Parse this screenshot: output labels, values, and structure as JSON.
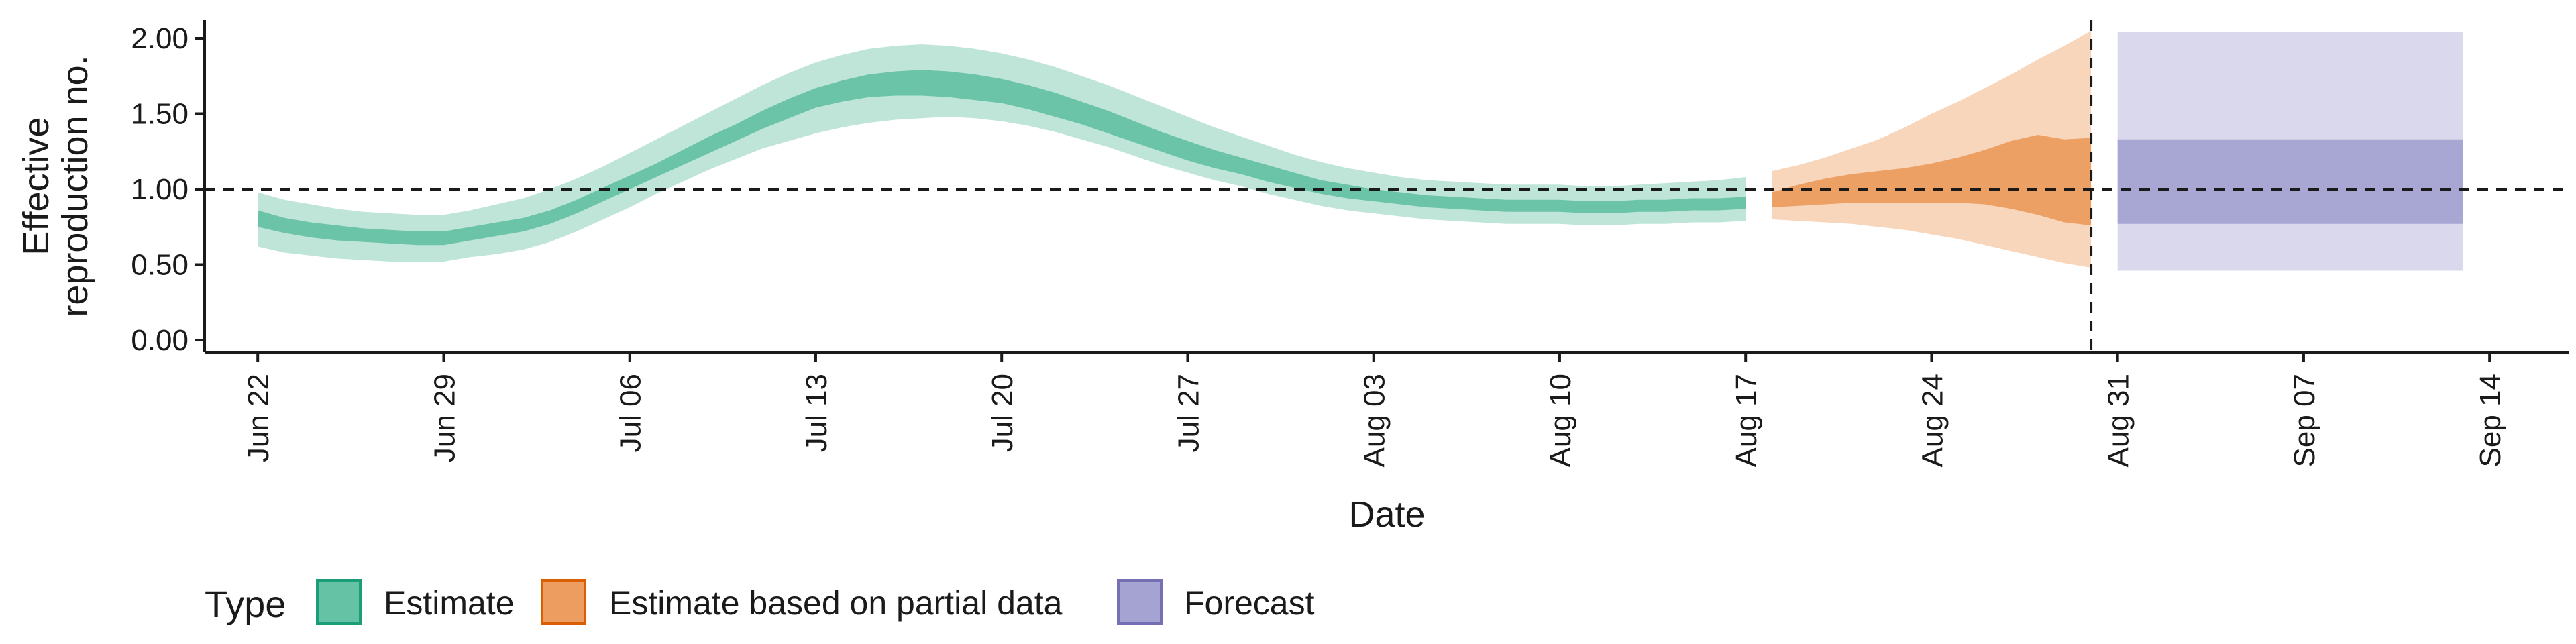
{
  "chart_data": {
    "type": "area",
    "title": "",
    "xlabel": "Date",
    "ylabel_lines": [
      "Effective",
      "reproduction no."
    ],
    "x_ticks": [
      "Jun 22",
      "Jun 29",
      "Jul 06",
      "Jul 13",
      "Jul 20",
      "Jul 27",
      "Aug 03",
      "Aug 10",
      "Aug 17",
      "Aug 24",
      "Aug 31",
      "Sep 07",
      "Sep 14"
    ],
    "y_ticks": [
      "0.00",
      "0.50",
      "1.00",
      "1.50",
      "2.00"
    ],
    "xlim": [
      "2020-06-20",
      "2020-09-17"
    ],
    "ylim": [
      -0.08,
      2.12
    ],
    "reference_hline": 1.0,
    "reference_vline": "2020-08-30",
    "grid": false,
    "legend": {
      "title": "Type",
      "placement": "bottom-left",
      "items": [
        {
          "label": "Estimate",
          "color": "#66c2a5",
          "border": "#1b9e77"
        },
        {
          "label": "Estimate based on partial data",
          "color": "#ec9d5f",
          "border": "#d95f02"
        },
        {
          "label": "Forecast",
          "color": "#a5a3d1",
          "border": "#7570b3"
        }
      ]
    },
    "series": [
      {
        "name": "Estimate",
        "color": "#66c2a5",
        "x": [
          "2020-06-22",
          "2020-06-23",
          "2020-06-24",
          "2020-06-25",
          "2020-06-26",
          "2020-06-27",
          "2020-06-28",
          "2020-06-29",
          "2020-06-30",
          "2020-07-01",
          "2020-07-02",
          "2020-07-03",
          "2020-07-04",
          "2020-07-05",
          "2020-07-06",
          "2020-07-07",
          "2020-07-08",
          "2020-07-09",
          "2020-07-10",
          "2020-07-11",
          "2020-07-12",
          "2020-07-13",
          "2020-07-14",
          "2020-07-15",
          "2020-07-16",
          "2020-07-17",
          "2020-07-18",
          "2020-07-19",
          "2020-07-20",
          "2020-07-21",
          "2020-07-22",
          "2020-07-23",
          "2020-07-24",
          "2020-07-25",
          "2020-07-26",
          "2020-07-27",
          "2020-07-28",
          "2020-07-29",
          "2020-07-30",
          "2020-07-31",
          "2020-08-01",
          "2020-08-02",
          "2020-08-03",
          "2020-08-04",
          "2020-08-05",
          "2020-08-06",
          "2020-08-07",
          "2020-08-08",
          "2020-08-09",
          "2020-08-10",
          "2020-08-11",
          "2020-08-12",
          "2020-08-13",
          "2020-08-14",
          "2020-08-15",
          "2020-08-16",
          "2020-08-17"
        ],
        "lower90": [
          0.62,
          0.58,
          0.56,
          0.54,
          0.53,
          0.52,
          0.52,
          0.52,
          0.55,
          0.57,
          0.6,
          0.65,
          0.72,
          0.8,
          0.88,
          0.97,
          1.05,
          1.13,
          1.2,
          1.27,
          1.32,
          1.37,
          1.41,
          1.44,
          1.46,
          1.47,
          1.48,
          1.47,
          1.45,
          1.42,
          1.38,
          1.33,
          1.28,
          1.22,
          1.16,
          1.11,
          1.06,
          1.02,
          0.97,
          0.93,
          0.89,
          0.86,
          0.84,
          0.82,
          0.8,
          0.79,
          0.78,
          0.77,
          0.77,
          0.77,
          0.76,
          0.76,
          0.77,
          0.77,
          0.78,
          0.78,
          0.79
        ],
        "lower50": [
          0.75,
          0.71,
          0.68,
          0.66,
          0.65,
          0.64,
          0.63,
          0.63,
          0.66,
          0.69,
          0.72,
          0.77,
          0.84,
          0.92,
          1.0,
          1.08,
          1.16,
          1.24,
          1.32,
          1.4,
          1.47,
          1.54,
          1.58,
          1.61,
          1.62,
          1.62,
          1.61,
          1.59,
          1.57,
          1.53,
          1.48,
          1.43,
          1.37,
          1.31,
          1.25,
          1.19,
          1.14,
          1.1,
          1.05,
          1.01,
          0.97,
          0.94,
          0.92,
          0.9,
          0.88,
          0.87,
          0.86,
          0.85,
          0.85,
          0.85,
          0.84,
          0.84,
          0.85,
          0.85,
          0.86,
          0.86,
          0.87
        ],
        "upper50": [
          0.86,
          0.81,
          0.78,
          0.76,
          0.74,
          0.73,
          0.72,
          0.72,
          0.75,
          0.78,
          0.81,
          0.86,
          0.93,
          1.01,
          1.09,
          1.17,
          1.26,
          1.35,
          1.43,
          1.52,
          1.6,
          1.67,
          1.72,
          1.76,
          1.78,
          1.79,
          1.78,
          1.76,
          1.73,
          1.69,
          1.64,
          1.58,
          1.52,
          1.45,
          1.38,
          1.32,
          1.26,
          1.21,
          1.16,
          1.11,
          1.06,
          1.03,
          1.0,
          0.98,
          0.96,
          0.95,
          0.94,
          0.93,
          0.93,
          0.93,
          0.92,
          0.92,
          0.93,
          0.93,
          0.94,
          0.94,
          0.95
        ],
        "upper90": [
          0.98,
          0.93,
          0.9,
          0.87,
          0.85,
          0.84,
          0.83,
          0.83,
          0.86,
          0.9,
          0.94,
          1.0,
          1.07,
          1.15,
          1.24,
          1.33,
          1.42,
          1.51,
          1.6,
          1.69,
          1.77,
          1.84,
          1.89,
          1.93,
          1.95,
          1.96,
          1.95,
          1.93,
          1.9,
          1.86,
          1.81,
          1.75,
          1.69,
          1.62,
          1.55,
          1.48,
          1.41,
          1.35,
          1.29,
          1.23,
          1.18,
          1.14,
          1.11,
          1.08,
          1.06,
          1.05,
          1.04,
          1.03,
          1.03,
          1.03,
          1.02,
          1.02,
          1.03,
          1.04,
          1.05,
          1.06,
          1.08
        ]
      },
      {
        "name": "Estimate based on partial data",
        "color": "#ec9d5f",
        "x": [
          "2020-08-18",
          "2020-08-19",
          "2020-08-20",
          "2020-08-21",
          "2020-08-22",
          "2020-08-23",
          "2020-08-24",
          "2020-08-25",
          "2020-08-26",
          "2020-08-27",
          "2020-08-28",
          "2020-08-29",
          "2020-08-30"
        ],
        "lower90": [
          0.8,
          0.79,
          0.78,
          0.77,
          0.75,
          0.73,
          0.7,
          0.67,
          0.63,
          0.59,
          0.55,
          0.51,
          0.48
        ],
        "lower50": [
          0.88,
          0.89,
          0.9,
          0.91,
          0.91,
          0.91,
          0.91,
          0.91,
          0.9,
          0.87,
          0.83,
          0.78,
          0.76
        ],
        "upper50": [
          0.98,
          1.03,
          1.07,
          1.1,
          1.12,
          1.14,
          1.17,
          1.21,
          1.26,
          1.32,
          1.36,
          1.33,
          1.34
        ],
        "upper90": [
          1.12,
          1.16,
          1.21,
          1.27,
          1.33,
          1.41,
          1.5,
          1.58,
          1.67,
          1.76,
          1.86,
          1.95,
          2.05
        ]
      },
      {
        "name": "Forecast",
        "color": "#a5a3d1",
        "x": [
          "2020-08-31",
          "2020-09-13"
        ],
        "lower90": [
          0.46,
          0.46
        ],
        "lower50": [
          0.77,
          0.77
        ],
        "upper50": [
          1.33,
          1.33
        ],
        "upper90": [
          2.04,
          2.04
        ]
      }
    ]
  }
}
